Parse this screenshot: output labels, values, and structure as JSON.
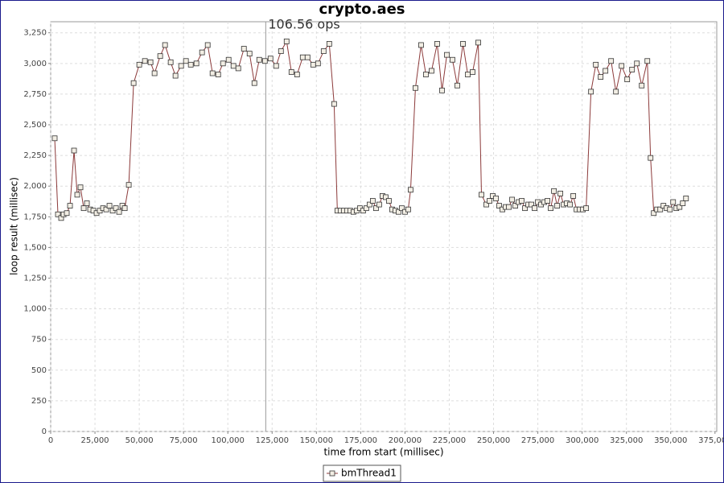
{
  "chart_data": {
    "type": "line",
    "title": "crypto.aes",
    "x_label": "time from start (millisec)",
    "y_label": "loop result (millisec)",
    "x": [
      2270,
      4090,
      5910,
      7270,
      9090,
      10910,
      13180,
      15000,
      16820,
      18640,
      20450,
      22270,
      24090,
      25910,
      27730,
      29550,
      31360,
      33180,
      35000,
      36820,
      38640,
      40450,
      41820,
      44090,
      46820,
      50000,
      53180,
      56360,
      58640,
      61820,
      64550,
      67730,
      70450,
      73640,
      76360,
      79090,
      82270,
      85450,
      88640,
      91360,
      94550,
      97270,
      100450,
      103180,
      105910,
      109090,
      112270,
      115000,
      117730,
      120910,
      124090,
      127270,
      130000,
      133180,
      135910,
      139090,
      142270,
      145000,
      148180,
      150910,
      154090,
      157270,
      160000,
      161820,
      163640,
      165450,
      167270,
      169090,
      170910,
      172730,
      174550,
      176360,
      178180,
      180000,
      181820,
      183640,
      185450,
      187270,
      189090,
      190910,
      192730,
      194550,
      196360,
      198180,
      200000,
      201820,
      203180,
      205910,
      209090,
      211820,
      215000,
      218180,
      220910,
      223640,
      226820,
      229550,
      232730,
      235450,
      238180,
      241360,
      243180,
      245910,
      247730,
      249550,
      251360,
      253180,
      255000,
      256820,
      258640,
      260450,
      262270,
      264090,
      265910,
      267730,
      269550,
      271360,
      273180,
      275000,
      276820,
      278640,
      280450,
      282270,
      284090,
      285910,
      287730,
      289550,
      291360,
      293180,
      295000,
      296820,
      298640,
      300450,
      302270,
      305000,
      307730,
      310450,
      313180,
      316360,
      319090,
      322270,
      325450,
      328180,
      330910,
      333640,
      336820,
      338640,
      340450,
      342270,
      344090,
      345910,
      347730,
      349550,
      351360,
      353180,
      355000,
      356820,
      358640
    ],
    "series": [
      {
        "name": "bmThread1",
        "color": "#8c3a3a",
        "values": [
          2390,
          1770,
          1740,
          1770,
          1780,
          1840,
          2290,
          1930,
          1990,
          1820,
          1860,
          1810,
          1800,
          1780,
          1800,
          1820,
          1810,
          1840,
          1800,
          1820,
          1790,
          1840,
          1820,
          2010,
          2840,
          2990,
          3020,
          3010,
          2920,
          3060,
          3150,
          3010,
          2900,
          2980,
          3020,
          2990,
          3000,
          3090,
          3150,
          2920,
          2910,
          3000,
          3030,
          2980,
          2960,
          3120,
          3080,
          2840,
          3030,
          3020,
          3040,
          2980,
          3100,
          3180,
          2930,
          2910,
          3050,
          3050,
          2990,
          3000,
          3100,
          3160,
          2670,
          1800,
          1800,
          1800,
          1800,
          1800,
          1790,
          1800,
          1820,
          1800,
          1820,
          1850,
          1880,
          1820,
          1850,
          1920,
          1910,
          1880,
          1810,
          1800,
          1790,
          1820,
          1790,
          1810,
          1970,
          2800,
          3150,
          2910,
          2940,
          3160,
          2780,
          3070,
          3030,
          2820,
          3160,
          2910,
          2930,
          3170,
          1930,
          1850,
          1880,
          1920,
          1900,
          1840,
          1810,
          1830,
          1830,
          1890,
          1840,
          1870,
          1880,
          1820,
          1850,
          1850,
          1820,
          1870,
          1850,
          1870,
          1880,
          1820,
          1960,
          1840,
          1940,
          1850,
          1860,
          1850,
          1920,
          1810,
          1810,
          1810,
          1820,
          2770,
          2990,
          2890,
          2940,
          3020,
          2770,
          2980,
          2870,
          2950,
          3000,
          2820,
          3020,
          2230,
          1780,
          1810,
          1810,
          1840,
          1820,
          1810,
          1870,
          1820,
          1830,
          1860,
          1900
        ]
      }
    ],
    "xlim": [
      0,
      376000
    ],
    "ylim": [
      0,
      3340
    ],
    "xticks": [
      0,
      {
        "value": 25000,
        "label": "25,000"
      },
      {
        "value": 50000,
        "label": "50,000"
      },
      {
        "value": 75000,
        "label": "75,000"
      },
      {
        "value": 100000,
        "label": "100,000"
      },
      {
        "value": 125000,
        "label": "125,000"
      },
      {
        "value": 150000,
        "label": "150,000"
      },
      {
        "value": 175000,
        "label": "175,000"
      },
      {
        "value": 200000,
        "label": "200,000"
      },
      {
        "value": 225000,
        "label": "225,000"
      },
      {
        "value": 250000,
        "label": "250,000"
      },
      {
        "value": 275000,
        "label": "275,000"
      },
      {
        "value": 300000,
        "label": "300,000"
      },
      {
        "value": 325000,
        "label": "325,000"
      },
      {
        "value": 350000,
        "label": "350,000"
      },
      {
        "value": 375000,
        "label": "375,000"
      }
    ],
    "yticks": [
      0,
      250,
      500,
      750,
      {
        "value": 1000,
        "label": "1,000"
      },
      {
        "value": 1250,
        "label": "1,250"
      },
      {
        "value": 1500,
        "label": "1,500"
      },
      {
        "value": 1750,
        "label": "1,750"
      },
      {
        "value": 2000,
        "label": "2,000"
      },
      {
        "value": 2250,
        "label": "2,250"
      },
      {
        "value": 2500,
        "label": "2,500"
      },
      {
        "value": 2750,
        "label": "2,750"
      },
      {
        "value": 3000,
        "label": "3,000"
      },
      {
        "value": 3250,
        "label": "3,250"
      }
    ],
    "grid": true,
    "legend": "bottom",
    "marker": {
      "value": 121400,
      "label": "106.56 ops"
    }
  }
}
